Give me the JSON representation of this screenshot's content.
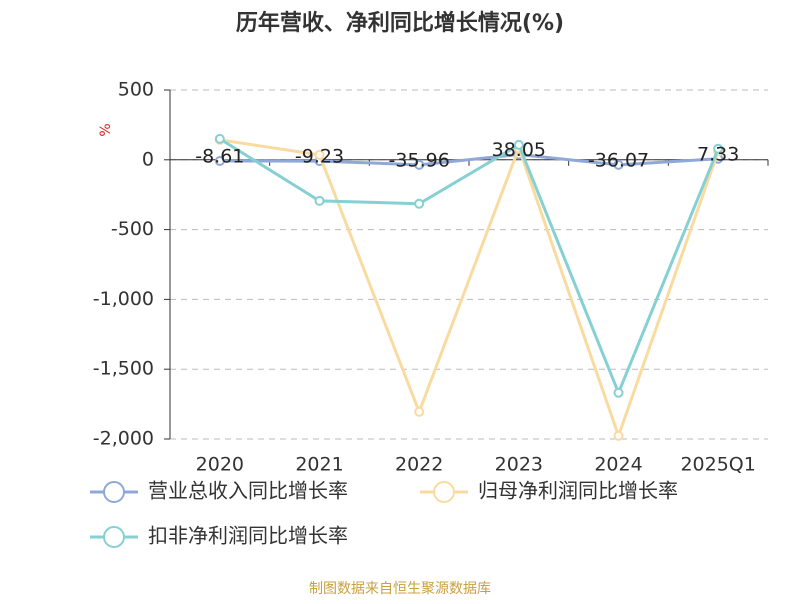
{
  "chart_data": {
    "type": "line",
    "title": "历年营收、净利同比增长情况(%)",
    "y_label": "%",
    "categories": [
      "2020",
      "2021",
      "2022",
      "2023",
      "2024",
      "2025Q1"
    ],
    "series": [
      {
        "name": "营业总收入同比增长率",
        "color": "#8fa8d8",
        "values": [
          -8.61,
          -9.23,
          -35.96,
          38.05,
          -36.07,
          7.33
        ],
        "show_labels": true
      },
      {
        "name": "归母净利润同比增长率",
        "color": "#f9dba0",
        "values": [
          143,
          35,
          -1805,
          85,
          -1977,
          60
        ]
      },
      {
        "name": "扣非净利润同比增长率",
        "color": "#86d0d4",
        "values": [
          150,
          -294,
          -315,
          107,
          -1669,
          79
        ]
      }
    ],
    "ylim": [
      -2000,
      500
    ],
    "yticks": [
      {
        "value": -2000,
        "label": "-2,000"
      },
      {
        "value": -1500,
        "label": "-1,500"
      },
      {
        "value": -1000,
        "label": "-1,000"
      },
      -500,
      0,
      500
    ],
    "grid": true,
    "source": "制图数据来自恒生聚源数据库"
  }
}
